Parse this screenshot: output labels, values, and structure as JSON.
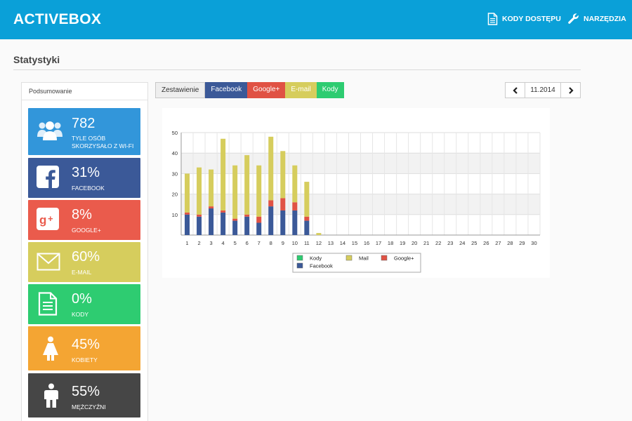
{
  "app": {
    "title": "ACTIVEBOX"
  },
  "nav": [
    {
      "label": "KODY DOSTĘPU",
      "icon": "document-icon"
    },
    {
      "label": "NARZĘDZIA",
      "icon": "wrench-icon"
    }
  ],
  "page": {
    "title": "Statystyki"
  },
  "summary": {
    "header": "Podsumowanie",
    "cards": [
      {
        "value": "782",
        "label": "TYLE OSÓB SKORZYSAŁO Z WI-FI",
        "icon": "users-icon",
        "color": "#3296da"
      },
      {
        "value": "31%",
        "label": "FACEBOOK",
        "icon": "facebook-icon",
        "color": "#3b5998"
      },
      {
        "value": "8%",
        "label": "GOOGLE+",
        "icon": "google-plus-icon",
        "color": "#ea5b4c"
      },
      {
        "value": "60%",
        "label": "E-MAIL",
        "icon": "mail-icon",
        "color": "#d6cd5d"
      },
      {
        "value": "0%",
        "label": "KODY",
        "icon": "document-icon",
        "color": "#2ecc71"
      },
      {
        "value": "45%",
        "label": "KOBIETY",
        "icon": "woman-icon",
        "color": "#f4a533"
      },
      {
        "value": "55%",
        "label": "MĘŻCZYŹNI",
        "icon": "man-icon",
        "color": "#464646"
      }
    ]
  },
  "tabs": [
    {
      "label": "Zestawienie",
      "color": "#eeeeee"
    },
    {
      "label": "Facebook",
      "color": "#3b5998"
    },
    {
      "label": "Google+",
      "color": "#e05244"
    },
    {
      "label": "E-mail",
      "color": "#d6cd5d"
    },
    {
      "label": "Kody",
      "color": "#2ecc71"
    }
  ],
  "date_nav": {
    "current": "11.2014",
    "prev_icon": "chevron-left-icon",
    "next_icon": "chevron-right-icon"
  },
  "chart_data": {
    "type": "bar",
    "stacked": true,
    "categories": [
      "1",
      "2",
      "3",
      "4",
      "5",
      "6",
      "7",
      "8",
      "9",
      "10",
      "11",
      "12",
      "13",
      "14",
      "15",
      "16",
      "17",
      "18",
      "19",
      "20",
      "21",
      "22",
      "23",
      "24",
      "25",
      "26",
      "27",
      "28",
      "29",
      "30"
    ],
    "ylim": [
      0,
      50
    ],
    "yticks": [
      10,
      20,
      30,
      40,
      50
    ],
    "grid": true,
    "legend_position": "bottom",
    "series": [
      {
        "name": "Facebook",
        "color": "#3b5998",
        "values": [
          10,
          9,
          13,
          11,
          7,
          9,
          6,
          14,
          12,
          12,
          7,
          0,
          0,
          0,
          0,
          0,
          0,
          0,
          0,
          0,
          0,
          0,
          0,
          0,
          0,
          0,
          0,
          0,
          0,
          0
        ]
      },
      {
        "name": "Google+",
        "color": "#e05244",
        "values": [
          1,
          1,
          1,
          1,
          1,
          1,
          3,
          3,
          6,
          4,
          2,
          0,
          0,
          0,
          0,
          0,
          0,
          0,
          0,
          0,
          0,
          0,
          0,
          0,
          0,
          0,
          0,
          0,
          0,
          0
        ]
      },
      {
        "name": "Mail",
        "color": "#d6cd5d",
        "values": [
          19,
          23,
          18,
          35,
          26,
          29,
          25,
          31,
          23,
          18,
          17,
          1,
          0,
          0,
          0,
          0,
          0,
          0,
          0,
          0,
          0,
          0,
          0,
          0,
          0,
          0,
          0,
          0,
          0,
          0
        ]
      },
      {
        "name": "Kody",
        "color": "#2ecc71",
        "values": [
          0,
          0,
          0,
          0,
          0,
          0,
          0,
          0,
          0,
          0,
          0,
          0,
          0,
          0,
          0,
          0,
          0,
          0,
          0,
          0,
          0,
          0,
          0,
          0,
          0,
          0,
          0,
          0,
          0,
          0
        ]
      }
    ],
    "legend": [
      "Kody",
      "Mail",
      "Google+",
      "Facebook"
    ]
  }
}
